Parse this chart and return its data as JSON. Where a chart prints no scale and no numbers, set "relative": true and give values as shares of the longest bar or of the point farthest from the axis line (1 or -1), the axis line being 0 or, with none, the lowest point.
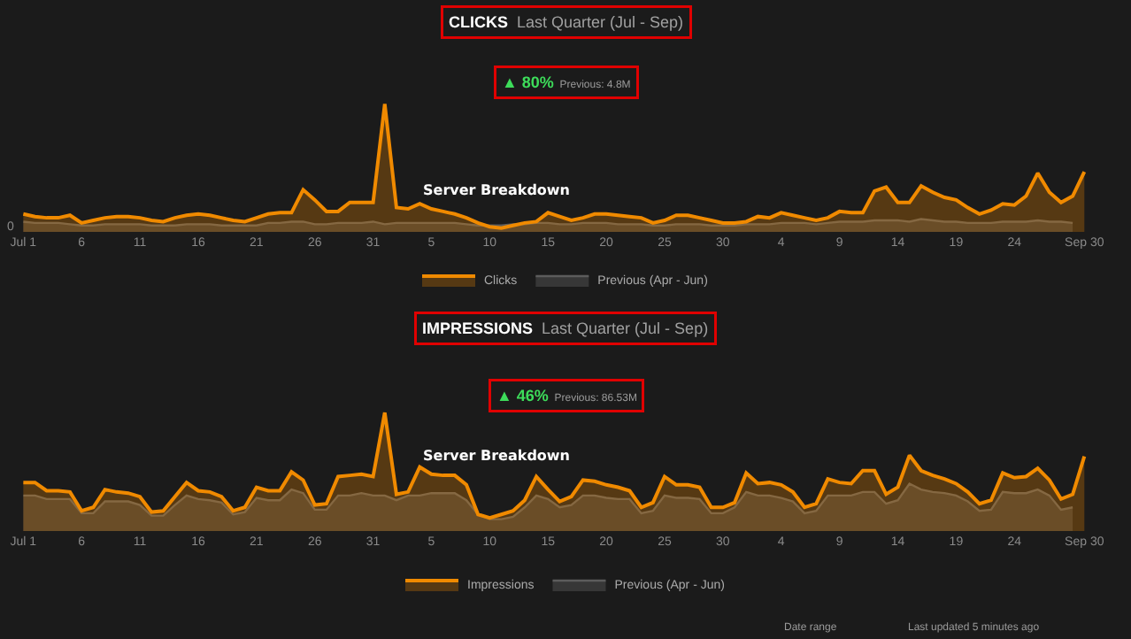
{
  "chart_data": [
    {
      "type": "area",
      "title": "CLICKS",
      "subtitle": "Last Quarter (Jul - Sep)",
      "relative": true,
      "legend": "bottom",
      "grid": false,
      "marker": "none",
      "xlim": [
        "--06-29",
        "--10-04"
      ],
      "xticks": [
        {
          "value": "--07-01",
          "label": "Jul 1"
        },
        {
          "value": "--07-06",
          "label": "6"
        },
        {
          "value": "--07-11",
          "label": "11"
        },
        {
          "value": "--07-16",
          "label": "16"
        },
        {
          "value": "--07-21",
          "label": "21"
        },
        {
          "value": "--07-26",
          "label": "26"
        },
        {
          "value": "--07-31",
          "label": "31"
        },
        {
          "value": "--08-05",
          "label": "5"
        },
        {
          "value": "--08-10",
          "label": "10"
        },
        {
          "value": "--08-15",
          "label": "15"
        },
        {
          "value": "--08-20",
          "label": "20"
        },
        {
          "value": "--08-25",
          "label": "25"
        },
        {
          "value": "--08-30",
          "label": "30"
        },
        {
          "value": "--09-04",
          "label": "4"
        },
        {
          "value": "--09-09",
          "label": "9"
        },
        {
          "value": "--09-14",
          "label": "14"
        },
        {
          "value": "--09-19",
          "label": "19"
        },
        {
          "value": "--09-24",
          "label": "24"
        },
        {
          "value": "--09-30",
          "label": "Sep 30"
        }
      ],
      "annotations": [
        "▲ 80%",
        "Previous: 4.8M",
        "Server Breakdown",
        "0"
      ],
      "x": [
        "--07-01",
        "--07-02",
        "--07-03",
        "--07-04",
        "--07-05",
        "--07-06",
        "--07-07",
        "--07-08",
        "--07-09",
        "--07-10",
        "--07-11",
        "--07-12",
        "--07-13",
        "--07-14",
        "--07-15",
        "--07-16",
        "--07-17",
        "--07-18",
        "--07-19",
        "--07-20",
        "--07-21",
        "--07-22",
        "--07-23",
        "--07-24",
        "--07-25",
        "--07-26",
        "--07-27",
        "--07-28",
        "--07-29",
        "--07-30",
        "--07-31",
        "--08-01",
        "--08-02",
        "--08-03",
        "--08-04",
        "--08-05",
        "--08-06",
        "--08-07",
        "--08-08",
        "--08-09",
        "--08-10",
        "--08-11",
        "--08-12",
        "--08-13",
        "--08-14",
        "--08-15",
        "--08-16",
        "--08-17",
        "--08-18",
        "--08-19",
        "--08-20",
        "--08-21",
        "--08-22",
        "--08-23",
        "--08-24",
        "--08-25",
        "--08-26",
        "--08-27",
        "--08-28",
        "--08-29",
        "--08-30",
        "--08-31",
        "--09-01",
        "--09-02",
        "--09-03",
        "--09-04",
        "--09-05",
        "--09-06",
        "--09-07",
        "--09-08",
        "--09-09",
        "--09-10",
        "--09-11",
        "--09-12",
        "--09-13",
        "--09-14",
        "--09-15",
        "--09-16",
        "--09-17",
        "--09-18",
        "--09-19",
        "--09-20",
        "--09-21",
        "--09-22",
        "--09-23",
        "--09-24",
        "--09-25",
        "--09-26",
        "--09-27",
        "--09-28",
        "--09-29",
        "--09-30"
      ],
      "series": [
        {
          "name": "Clicks",
          "color": "#f08a00",
          "values": [
            0.14,
            0.12,
            0.11,
            0.11,
            0.13,
            0.07,
            0.09,
            0.11,
            0.12,
            0.12,
            0.11,
            0.09,
            0.08,
            0.11,
            0.13,
            0.14,
            0.13,
            0.11,
            0.09,
            0.08,
            0.11,
            0.14,
            0.15,
            0.15,
            0.33,
            0.25,
            0.16,
            0.16,
            0.23,
            0.23,
            0.23,
            1.0,
            0.19,
            0.18,
            0.22,
            0.18,
            0.16,
            0.14,
            0.11,
            0.07,
            0.04,
            0.03,
            0.05,
            0.07,
            0.08,
            0.15,
            0.12,
            0.09,
            0.11,
            0.14,
            0.14,
            0.13,
            0.12,
            0.11,
            0.07,
            0.09,
            0.13,
            0.13,
            0.11,
            0.09,
            0.07,
            0.07,
            0.08,
            0.12,
            0.11,
            0.15,
            0.13,
            0.11,
            0.09,
            0.11,
            0.16,
            0.15,
            0.15,
            0.32,
            0.35,
            0.23,
            0.23,
            0.36,
            0.31,
            0.27,
            0.25,
            0.19,
            0.14,
            0.17,
            0.22,
            0.21,
            0.28,
            0.46,
            0.31,
            0.23,
            0.28,
            0.47
          ]
        },
        {
          "name": "Previous (Apr - Jun)",
          "color": "#5c5c5c",
          "values": [
            0.08,
            0.07,
            0.07,
            0.07,
            0.06,
            0.05,
            0.05,
            0.06,
            0.06,
            0.06,
            0.06,
            0.05,
            0.05,
            0.05,
            0.06,
            0.06,
            0.06,
            0.05,
            0.05,
            0.05,
            0.05,
            0.07,
            0.07,
            0.08,
            0.08,
            0.06,
            0.06,
            0.07,
            0.07,
            0.07,
            0.08,
            0.06,
            0.07,
            0.07,
            0.07,
            0.07,
            0.07,
            0.07,
            0.06,
            0.05,
            0.05,
            0.05,
            0.06,
            0.06,
            0.07,
            0.07,
            0.06,
            0.06,
            0.07,
            0.07,
            0.07,
            0.06,
            0.06,
            0.06,
            0.05,
            0.05,
            0.06,
            0.06,
            0.06,
            0.05,
            0.05,
            0.05,
            0.06,
            0.06,
            0.06,
            0.07,
            0.07,
            0.07,
            0.06,
            0.07,
            0.08,
            0.08,
            0.08,
            0.09,
            0.09,
            0.09,
            0.08,
            0.1,
            0.09,
            0.08,
            0.08,
            0.07,
            0.07,
            0.07,
            0.08,
            0.08,
            0.08,
            0.09,
            0.08,
            0.08,
            0.07,
            null
          ]
        }
      ]
    },
    {
      "type": "area",
      "title": "IMPRESSIONS",
      "subtitle": "Last Quarter (Jul - Sep)",
      "relative": true,
      "legend": "bottom",
      "grid": false,
      "marker": "none",
      "xlim": [
        "--06-29",
        "--10-04"
      ],
      "xticks": [
        {
          "value": "--07-01",
          "label": "Jul 1"
        },
        {
          "value": "--07-06",
          "label": "6"
        },
        {
          "value": "--07-11",
          "label": "11"
        },
        {
          "value": "--07-16",
          "label": "16"
        },
        {
          "value": "--07-21",
          "label": "21"
        },
        {
          "value": "--07-26",
          "label": "26"
        },
        {
          "value": "--07-31",
          "label": "31"
        },
        {
          "value": "--08-05",
          "label": "5"
        },
        {
          "value": "--08-10",
          "label": "10"
        },
        {
          "value": "--08-15",
          "label": "15"
        },
        {
          "value": "--08-20",
          "label": "20"
        },
        {
          "value": "--08-25",
          "label": "25"
        },
        {
          "value": "--08-30",
          "label": "30"
        },
        {
          "value": "--09-04",
          "label": "4"
        },
        {
          "value": "--09-09",
          "label": "9"
        },
        {
          "value": "--09-14",
          "label": "14"
        },
        {
          "value": "--09-19",
          "label": "19"
        },
        {
          "value": "--09-24",
          "label": "24"
        },
        {
          "value": "--09-30",
          "label": "Sep 30"
        }
      ],
      "annotations": [
        "▲ 46%",
        "Previous: 86.53M",
        "Server Breakdown",
        "Date range",
        "Last updated 5 minutes ago"
      ],
      "x": [
        "--07-01",
        "--07-02",
        "--07-03",
        "--07-04",
        "--07-05",
        "--07-06",
        "--07-07",
        "--07-08",
        "--07-09",
        "--07-10",
        "--07-11",
        "--07-12",
        "--07-13",
        "--07-14",
        "--07-15",
        "--07-16",
        "--07-17",
        "--07-18",
        "--07-19",
        "--07-20",
        "--07-21",
        "--07-22",
        "--07-23",
        "--07-24",
        "--07-25",
        "--07-26",
        "--07-27",
        "--07-28",
        "--07-29",
        "--07-30",
        "--07-31",
        "--08-01",
        "--08-02",
        "--08-03",
        "--08-04",
        "--08-05",
        "--08-06",
        "--08-07",
        "--08-08",
        "--08-09",
        "--08-10",
        "--08-11",
        "--08-12",
        "--08-13",
        "--08-14",
        "--08-15",
        "--08-16",
        "--08-17",
        "--08-18",
        "--08-19",
        "--08-20",
        "--08-21",
        "--08-22",
        "--08-23",
        "--08-24",
        "--08-25",
        "--08-26",
        "--08-27",
        "--08-28",
        "--08-29",
        "--08-30",
        "--08-31",
        "--09-01",
        "--09-02",
        "--09-03",
        "--09-04",
        "--09-05",
        "--09-06",
        "--09-07",
        "--09-08",
        "--09-09",
        "--09-10",
        "--09-11",
        "--09-12",
        "--09-13",
        "--09-14",
        "--09-15",
        "--09-16",
        "--09-17",
        "--09-18",
        "--09-19",
        "--09-20",
        "--09-21",
        "--09-22",
        "--09-23",
        "--09-24",
        "--09-25",
        "--09-26",
        "--09-27",
        "--09-28",
        "--09-29",
        "--09-30"
      ],
      "series": [
        {
          "name": "Impressions",
          "color": "#f08a00",
          "values": [
            0.41,
            0.41,
            0.34,
            0.34,
            0.33,
            0.17,
            0.2,
            0.35,
            0.33,
            0.32,
            0.29,
            0.16,
            0.17,
            0.29,
            0.41,
            0.34,
            0.33,
            0.29,
            0.17,
            0.2,
            0.37,
            0.34,
            0.34,
            0.5,
            0.43,
            0.22,
            0.23,
            0.46,
            0.47,
            0.48,
            0.46,
            1.0,
            0.31,
            0.33,
            0.54,
            0.48,
            0.47,
            0.47,
            0.39,
            0.14,
            0.11,
            0.14,
            0.17,
            0.26,
            0.46,
            0.35,
            0.25,
            0.29,
            0.43,
            0.42,
            0.39,
            0.37,
            0.34,
            0.2,
            0.24,
            0.46,
            0.39,
            0.39,
            0.37,
            0.2,
            0.2,
            0.24,
            0.49,
            0.4,
            0.41,
            0.39,
            0.33,
            0.2,
            0.23,
            0.44,
            0.41,
            0.4,
            0.51,
            0.51,
            0.31,
            0.37,
            0.64,
            0.51,
            0.47,
            0.44,
            0.4,
            0.33,
            0.23,
            0.26,
            0.49,
            0.45,
            0.46,
            0.53,
            0.43,
            0.27,
            0.31,
            0.63
          ]
        },
        {
          "name": "Previous (Apr - Jun)",
          "color": "#5c5c5c",
          "values": [
            0.3,
            0.3,
            0.27,
            0.27,
            0.27,
            0.15,
            0.15,
            0.25,
            0.25,
            0.25,
            0.22,
            0.13,
            0.13,
            0.22,
            0.3,
            0.27,
            0.26,
            0.24,
            0.14,
            0.16,
            0.28,
            0.26,
            0.26,
            0.35,
            0.32,
            0.18,
            0.18,
            0.3,
            0.3,
            0.32,
            0.3,
            0.3,
            0.26,
            0.3,
            0.3,
            0.32,
            0.32,
            0.32,
            0.26,
            0.14,
            0.1,
            0.1,
            0.12,
            0.2,
            0.3,
            0.27,
            0.2,
            0.22,
            0.3,
            0.3,
            0.28,
            0.27,
            0.27,
            0.15,
            0.17,
            0.3,
            0.28,
            0.28,
            0.27,
            0.15,
            0.15,
            0.2,
            0.33,
            0.3,
            0.3,
            0.28,
            0.25,
            0.15,
            0.17,
            0.3,
            0.3,
            0.3,
            0.33,
            0.33,
            0.23,
            0.26,
            0.4,
            0.35,
            0.33,
            0.32,
            0.3,
            0.25,
            0.17,
            0.18,
            0.33,
            0.32,
            0.32,
            0.35,
            0.3,
            0.18,
            0.2,
            null
          ]
        }
      ]
    }
  ]
}
